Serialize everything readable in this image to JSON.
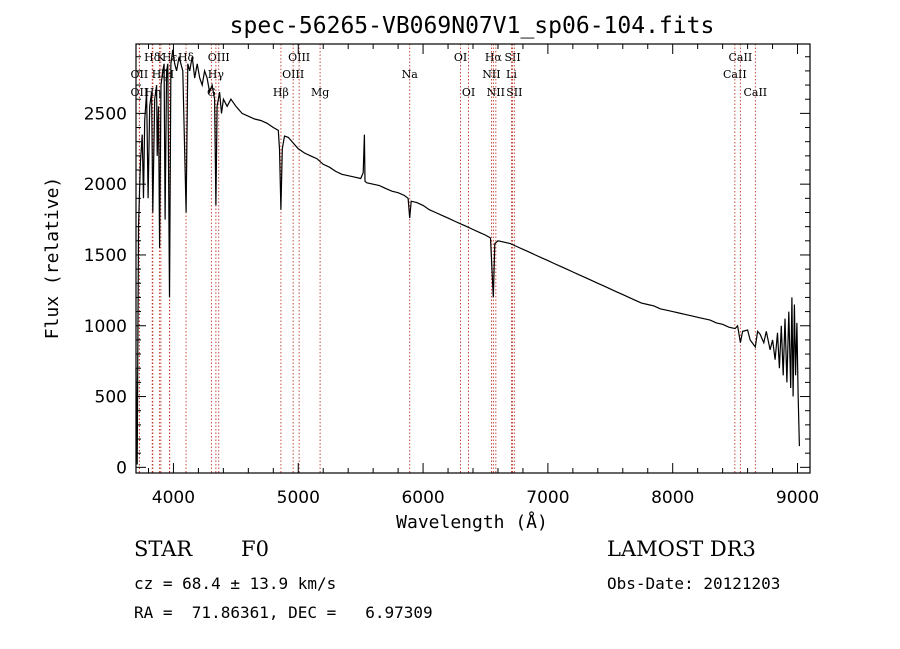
{
  "chart_data": {
    "type": "line",
    "title": "spec-56265-VB069N07V1_sp06-104.fits",
    "xlabel": "Wavelength (Å)",
    "ylabel": "Flux (relative)",
    "xlim": [
      3700,
      9100
    ],
    "ylim": [
      -40,
      2990
    ],
    "x_ticks": [
      4000,
      5000,
      6000,
      7000,
      8000,
      9000
    ],
    "y_ticks": [
      0,
      500,
      1000,
      1500,
      2000,
      2500
    ],
    "grid": false,
    "legend": "none",
    "series": [
      {
        "name": "spectrum",
        "points": [
          [
            3700,
            700
          ],
          [
            3710,
            20
          ],
          [
            3720,
            1700
          ],
          [
            3735,
            2150
          ],
          [
            3750,
            2350
          ],
          [
            3760,
            1900
          ],
          [
            3770,
            2450
          ],
          [
            3785,
            2650
          ],
          [
            3797,
            1900
          ],
          [
            3810,
            2550
          ],
          [
            3825,
            2650
          ],
          [
            3835,
            1800
          ],
          [
            3850,
            2600
          ],
          [
            3865,
            2700
          ],
          [
            3870,
            2200
          ],
          [
            3880,
            2550
          ],
          [
            3889,
            1550
          ],
          [
            3900,
            2700
          ],
          [
            3915,
            2800
          ],
          [
            3925,
            2850
          ],
          [
            3933,
            1750
          ],
          [
            3945,
            2800
          ],
          [
            3955,
            2850
          ],
          [
            3968,
            1200
          ],
          [
            3980,
            2850
          ],
          [
            3995,
            2950
          ],
          [
            4010,
            2850
          ],
          [
            4025,
            2800
          ],
          [
            4045,
            2900
          ],
          [
            4060,
            2850
          ],
          [
            4075,
            2800
          ],
          [
            4101,
            1800
          ],
          [
            4115,
            2850
          ],
          [
            4130,
            2800
          ],
          [
            4150,
            2900
          ],
          [
            4170,
            2750
          ],
          [
            4190,
            2850
          ],
          [
            4210,
            2750
          ],
          [
            4230,
            2700
          ],
          [
            4250,
            2800
          ],
          [
            4270,
            2750
          ],
          [
            4290,
            2650
          ],
          [
            4310,
            2700
          ],
          [
            4330,
            2600
          ],
          [
            4340,
            1850
          ],
          [
            4350,
            2550
          ],
          [
            4370,
            2650
          ],
          [
            4385,
            2500
          ],
          [
            4400,
            2600
          ],
          [
            4430,
            2550
          ],
          [
            4460,
            2600
          ],
          [
            4500,
            2550
          ],
          [
            4550,
            2500
          ],
          [
            4600,
            2480
          ],
          [
            4650,
            2460
          ],
          [
            4700,
            2450
          ],
          [
            4750,
            2430
          ],
          [
            4800,
            2400
          ],
          [
            4840,
            2380
          ],
          [
            4850,
            2250
          ],
          [
            4861,
            1820
          ],
          [
            4872,
            2250
          ],
          [
            4890,
            2340
          ],
          [
            4920,
            2330
          ],
          [
            4960,
            2290
          ],
          [
            5000,
            2250
          ],
          [
            5050,
            2220
          ],
          [
            5100,
            2200
          ],
          [
            5150,
            2180
          ],
          [
            5200,
            2140
          ],
          [
            5250,
            2120
          ],
          [
            5300,
            2090
          ],
          [
            5350,
            2070
          ],
          [
            5400,
            2060
          ],
          [
            5450,
            2050
          ],
          [
            5500,
            2040
          ],
          [
            5520,
            2080
          ],
          [
            5530,
            2350
          ],
          [
            5535,
            2020
          ],
          [
            5550,
            2010
          ],
          [
            5600,
            2000
          ],
          [
            5650,
            1990
          ],
          [
            5700,
            1970
          ],
          [
            5750,
            1950
          ],
          [
            5800,
            1940
          ],
          [
            5850,
            1920
          ],
          [
            5880,
            1900
          ],
          [
            5893,
            1760
          ],
          [
            5905,
            1880
          ],
          [
            5950,
            1870
          ],
          [
            6000,
            1850
          ],
          [
            6050,
            1820
          ],
          [
            6100,
            1800
          ],
          [
            6150,
            1780
          ],
          [
            6200,
            1760
          ],
          [
            6250,
            1740
          ],
          [
            6300,
            1720
          ],
          [
            6350,
            1700
          ],
          [
            6400,
            1680
          ],
          [
            6450,
            1660
          ],
          [
            6500,
            1640
          ],
          [
            6540,
            1620
          ],
          [
            6563,
            1200
          ],
          [
            6575,
            1580
          ],
          [
            6600,
            1600
          ],
          [
            6650,
            1590
          ],
          [
            6700,
            1580
          ],
          [
            6750,
            1560
          ],
          [
            6800,
            1540
          ],
          [
            6850,
            1520
          ],
          [
            6900,
            1500
          ],
          [
            6950,
            1480
          ],
          [
            7000,
            1460
          ],
          [
            7050,
            1440
          ],
          [
            7100,
            1420
          ],
          [
            7150,
            1400
          ],
          [
            7200,
            1380
          ],
          [
            7250,
            1360
          ],
          [
            7300,
            1340
          ],
          [
            7350,
            1320
          ],
          [
            7400,
            1300
          ],
          [
            7450,
            1280
          ],
          [
            7500,
            1260
          ],
          [
            7550,
            1240
          ],
          [
            7600,
            1220
          ],
          [
            7650,
            1200
          ],
          [
            7700,
            1180
          ],
          [
            7750,
            1160
          ],
          [
            7800,
            1150
          ],
          [
            7850,
            1140
          ],
          [
            7900,
            1120
          ],
          [
            7950,
            1110
          ],
          [
            8000,
            1100
          ],
          [
            8050,
            1090
          ],
          [
            8100,
            1080
          ],
          [
            8150,
            1070
          ],
          [
            8200,
            1060
          ],
          [
            8250,
            1050
          ],
          [
            8300,
            1040
          ],
          [
            8350,
            1020
          ],
          [
            8400,
            1010
          ],
          [
            8450,
            990
          ],
          [
            8500,
            980
          ],
          [
            8520,
            1000
          ],
          [
            8542,
            880
          ],
          [
            8560,
            960
          ],
          [
            8600,
            970
          ],
          [
            8620,
            900
          ],
          [
            8662,
            850
          ],
          [
            8680,
            960
          ],
          [
            8700,
            940
          ],
          [
            8730,
            880
          ],
          [
            8750,
            960
          ],
          [
            8780,
            830
          ],
          [
            8800,
            900
          ],
          [
            8820,
            760
          ],
          [
            8840,
            950
          ],
          [
            8855,
            700
          ],
          [
            8870,
            1000
          ],
          [
            8885,
            650
          ],
          [
            8900,
            1050
          ],
          [
            8915,
            600
          ],
          [
            8930,
            1100
          ],
          [
            8945,
            560
          ],
          [
            8955,
            1200
          ],
          [
            8965,
            500
          ],
          [
            8975,
            1150
          ],
          [
            8985,
            650
          ],
          [
            8995,
            1020
          ],
          [
            9005,
            520
          ],
          [
            9015,
            150
          ]
        ]
      }
    ],
    "spectral_lines": [
      {
        "label": "Hδ",
        "x": 3830,
        "row": 0
      },
      {
        "label": "K",
        "x": 3899,
        "row": 0
      },
      {
        "label": "Hε",
        "x": 3970,
        "row": 0
      },
      {
        "label": "Hδ",
        "x": 4101,
        "row": 0
      },
      {
        "label": "OII",
        "x": 3727,
        "row": 1
      },
      {
        "label": "Hζ",
        "x": 3889,
        "row": 1
      },
      {
        "label": "H",
        "x": 3968,
        "row": 1
      },
      {
        "label": "OII",
        "x": 3727,
        "row": 2
      },
      {
        "label": "Hη",
        "x": 3835,
        "row": 2
      },
      {
        "label": "G",
        "x": 4304,
        "row": 2
      },
      {
        "label": "OIII",
        "x": 4363,
        "row": 0
      },
      {
        "label": "Hγ",
        "x": 4340,
        "row": 1
      },
      {
        "label": "Hβ",
        "x": 4861,
        "row": 2
      },
      {
        "label": "OIII",
        "x": 5007,
        "row": 0
      },
      {
        "label": "OIII",
        "x": 4959,
        "row": 1
      },
      {
        "label": "Mg",
        "x": 5175,
        "row": 2
      },
      {
        "label": "Na",
        "x": 5893,
        "row": 1
      },
      {
        "label": "OI",
        "x": 6300,
        "row": 0
      },
      {
        "label": "OI",
        "x": 6364,
        "row": 2
      },
      {
        "label": "Hα",
        "x": 6563,
        "row": 0
      },
      {
        "label": "NII",
        "x": 6548,
        "row": 1
      },
      {
        "label": "NII",
        "x": 6583,
        "row": 2
      },
      {
        "label": "SII",
        "x": 6717,
        "row": 0
      },
      {
        "label": "Li",
        "x": 6708,
        "row": 1
      },
      {
        "label": "SII",
        "x": 6731,
        "row": 2
      },
      {
        "label": "CaII",
        "x": 8542,
        "row": 0
      },
      {
        "label": "CaII",
        "x": 8498,
        "row": 1
      },
      {
        "label": "CaII",
        "x": 8662,
        "row": 2
      }
    ]
  },
  "info": {
    "object_class": "STAR",
    "subclass": "F0",
    "survey": "LAMOST DR3",
    "redshift": "cz = 68.4 ± 13.9 km/s",
    "obs_date": "Obs-Date: 20121203",
    "coords": "RA =  71.86361, DEC =   6.97309"
  }
}
